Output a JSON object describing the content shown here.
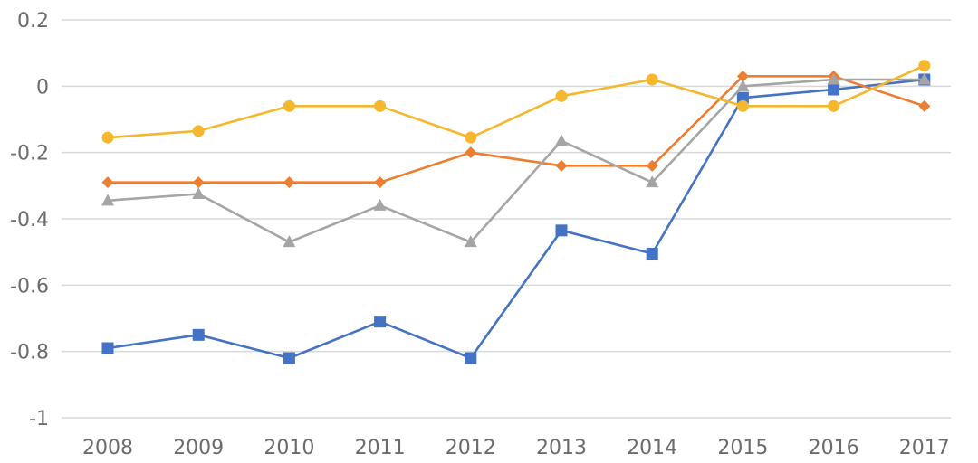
{
  "chart_data": {
    "type": "line",
    "title": "",
    "xlabel": "",
    "ylabel": "",
    "categories": [
      "2008",
      "2009",
      "2010",
      "2011",
      "2012",
      "2013",
      "2014",
      "2015",
      "2016",
      "2017"
    ],
    "ylim": [
      -1,
      0.2
    ],
    "yticks": [
      0.2,
      0,
      -0.2,
      -0.4,
      -0.6,
      -0.8,
      -1
    ],
    "ytick_labels": [
      "0.2",
      "0",
      "-0.2",
      "-0.4",
      "-0.6",
      "-0.8",
      "-1"
    ],
    "grid": true,
    "legend": "none",
    "series": [
      {
        "marker": "square",
        "color": "#4472c4",
        "values": [
          -0.79,
          -0.75,
          -0.82,
          -0.71,
          -0.82,
          -0.435,
          -0.505,
          -0.035,
          -0.01,
          0.02
        ]
      },
      {
        "marker": "diamond",
        "color": "#ed7d31",
        "values": [
          -0.29,
          -0.29,
          -0.29,
          -0.29,
          -0.2,
          -0.24,
          -0.24,
          0.03,
          0.03,
          -0.06
        ]
      },
      {
        "marker": "triangle",
        "color": "#a5a5a5",
        "values": [
          -0.345,
          -0.325,
          -0.47,
          -0.36,
          -0.47,
          -0.165,
          -0.29,
          0.0,
          0.02,
          0.02
        ]
      },
      {
        "marker": "circle",
        "color": "#f5b72d",
        "values": [
          -0.155,
          -0.135,
          -0.06,
          -0.06,
          -0.155,
          -0.03,
          0.02,
          -0.06,
          -0.06,
          0.062
        ]
      }
    ]
  }
}
